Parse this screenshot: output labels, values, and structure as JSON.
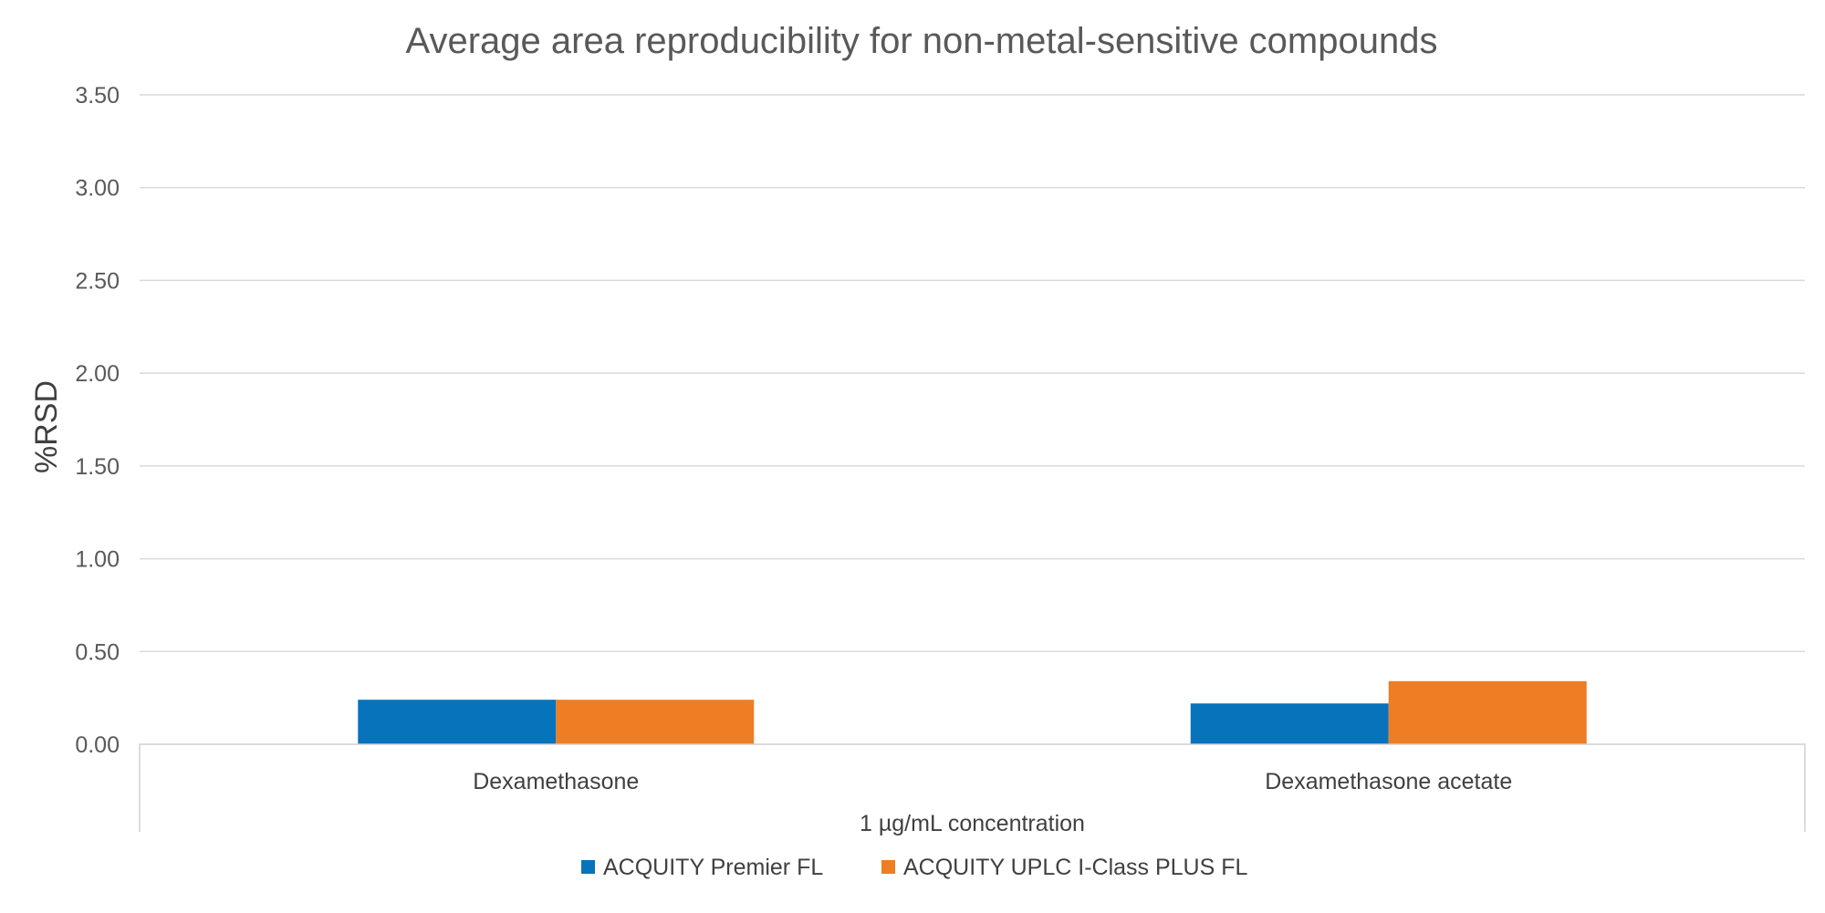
{
  "chart_data": {
    "type": "bar",
    "title": "Average area reproducibility for non-metal-sensitive compounds",
    "ylabel": "%RSD",
    "xlabel": "1 µg/mL concentration",
    "categories": [
      "Dexamethasone",
      "Dexamethasone acetate"
    ],
    "series": [
      {
        "name": "ACQUITY Premier FL",
        "color": "#0773bb",
        "values": [
          0.24,
          0.22
        ]
      },
      {
        "name": "ACQUITY UPLC I-Class PLUS FL",
        "color": "#ee7d23",
        "values": [
          0.24,
          0.34
        ]
      }
    ],
    "ylim": [
      0,
      3.5
    ],
    "yticks": [
      "0.00",
      "0.50",
      "1.00",
      "1.50",
      "2.00",
      "2.50",
      "3.00",
      "3.50"
    ],
    "grid": true,
    "legend_position": "bottom"
  }
}
